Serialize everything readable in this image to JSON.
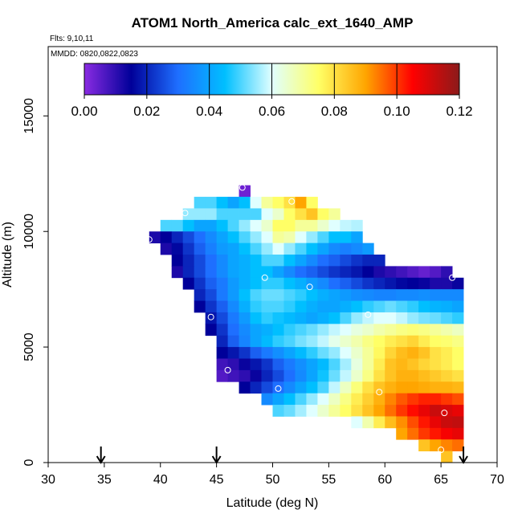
{
  "chart_data": {
    "type": "heatmap",
    "title": "ATOM1 North_America calc_ext_1640_AMP",
    "flights_note": "Flts: 9,10,11",
    "dates_note": "MMDD: 0820,0822,0823",
    "xlabel": "Latitude (deg N)",
    "ylabel": "Altitude (m)",
    "xlim": [
      30,
      70
    ],
    "ylim": [
      0,
      18000
    ],
    "x_ticks": [
      30,
      35,
      40,
      45,
      50,
      55,
      60,
      65,
      70
    ],
    "y_ticks": [
      0,
      5000,
      10000,
      15000
    ],
    "cell_size": {
      "lat": 1,
      "alt": 500
    },
    "colorbar": {
      "min": 0.0,
      "max": 0.12,
      "ticks": [
        0.0,
        0.02,
        0.04,
        0.06,
        0.08,
        0.1,
        0.12
      ],
      "tick_labels": [
        "0.00",
        "0.02",
        "0.04",
        "0.06",
        "0.08",
        "0.10",
        "0.12"
      ],
      "stops": [
        "#8a2be2",
        "#000099",
        "#1e6fff",
        "#00bfff",
        "#e0ffff",
        "#ffff66",
        "#ffa500",
        "#ff0000",
        "#8b1a1a"
      ]
    },
    "arrows_lat": [
      34.7,
      45.0,
      67.0
    ],
    "grid_rows": [
      {
        "alt": 11750,
        "lat0": 47,
        "values": [
          0.003
        ]
      },
      {
        "alt": 11250,
        "lat0": 43,
        "values": [
          0.05,
          0.05,
          0.045,
          0.04,
          0.045,
          0.06,
          0.07,
          0.075,
          0.08,
          0.09,
          0.075
        ]
      },
      {
        "alt": 10750,
        "lat0": 42,
        "values": [
          0.055,
          0.055,
          0.055,
          0.05,
          0.05,
          0.05,
          0.05,
          0.06,
          0.065,
          0.075,
          0.08,
          0.085,
          0.075,
          0.07
        ]
      },
      {
        "alt": 10250,
        "lat0": 40,
        "values": [
          0.05,
          0.05,
          0.045,
          0.04,
          0.04,
          0.045,
          0.05,
          0.055,
          0.06,
          0.065,
          0.075,
          0.075,
          0.07,
          0.07,
          0.065,
          0.06,
          0.058,
          0.057
        ]
      },
      {
        "alt": 9750,
        "lat0": 39,
        "values": [
          0.012,
          0.015,
          0.02,
          0.025,
          0.03,
          0.035,
          0.04,
          0.045,
          0.05,
          0.055,
          0.06,
          0.07,
          0.068,
          0.06,
          0.055,
          0.05,
          0.045,
          0.045,
          0.04
        ]
      },
      {
        "alt": 9250,
        "lat0": 40,
        "values": [
          0.012,
          0.016,
          0.022,
          0.028,
          0.033,
          0.038,
          0.04,
          0.045,
          0.05,
          0.055,
          0.06,
          0.055,
          0.05,
          0.045,
          0.04,
          0.035,
          0.033,
          0.035,
          0.038
        ]
      },
      {
        "alt": 8750,
        "lat0": 41,
        "values": [
          0.015,
          0.02,
          0.025,
          0.03,
          0.035,
          0.04,
          0.042,
          0.045,
          0.05,
          0.05,
          0.045,
          0.04,
          0.035,
          0.03,
          0.028,
          0.025,
          0.022,
          0.02,
          0.02
        ]
      },
      {
        "alt": 8250,
        "lat0": 41,
        "values": [
          0.012,
          0.02,
          0.025,
          0.03,
          0.035,
          0.04,
          0.042,
          0.045,
          0.045,
          0.04,
          0.035,
          0.03,
          0.028,
          0.025,
          0.022,
          0.02,
          0.018,
          0.015,
          0.012,
          0.01,
          0.008,
          0.006,
          0.004,
          0.006,
          0.01
        ]
      },
      {
        "alt": 7750,
        "lat0": 42,
        "values": [
          0.015,
          0.022,
          0.028,
          0.032,
          0.038,
          0.042,
          0.045,
          0.048,
          0.048,
          0.045,
          0.042,
          0.038,
          0.035,
          0.03,
          0.028,
          0.025,
          0.022,
          0.02,
          0.018,
          0.016,
          0.015,
          0.014,
          0.012,
          0.012,
          0.014
        ]
      },
      {
        "alt": 7250,
        "lat0": 43,
        "values": [
          0.02,
          0.025,
          0.032,
          0.038,
          0.045,
          0.05,
          0.052,
          0.052,
          0.05,
          0.048,
          0.045,
          0.042,
          0.04,
          0.038,
          0.036,
          0.035,
          0.034,
          0.034,
          0.035,
          0.035,
          0.036,
          0.035,
          0.035,
          0.035
        ]
      },
      {
        "alt": 6750,
        "lat0": 43,
        "values": [
          0.015,
          0.022,
          0.028,
          0.035,
          0.042,
          0.048,
          0.05,
          0.05,
          0.048,
          0.045,
          0.042,
          0.04,
          0.04,
          0.042,
          0.045,
          0.048,
          0.05,
          0.052,
          0.05,
          0.048,
          0.045,
          0.043,
          0.042,
          0.04
        ]
      },
      {
        "alt": 6250,
        "lat0": 44,
        "values": [
          0.018,
          0.025,
          0.032,
          0.038,
          0.045,
          0.048,
          0.046,
          0.044,
          0.042,
          0.04,
          0.042,
          0.045,
          0.05,
          0.055,
          0.058,
          0.06,
          0.06,
          0.058,
          0.055,
          0.053,
          0.052,
          0.05,
          0.048
        ]
      },
      {
        "alt": 5750,
        "lat0": 44,
        "values": [
          0.015,
          0.022,
          0.03,
          0.035,
          0.04,
          0.042,
          0.045,
          0.048,
          0.05,
          0.052,
          0.055,
          0.058,
          0.06,
          0.063,
          0.065,
          0.068,
          0.07,
          0.072,
          0.073,
          0.072,
          0.07,
          0.068,
          0.066
        ]
      },
      {
        "alt": 5250,
        "lat0": 45,
        "values": [
          0.02,
          0.028,
          0.034,
          0.04,
          0.044,
          0.048,
          0.05,
          0.053,
          0.055,
          0.058,
          0.062,
          0.065,
          0.068,
          0.072,
          0.075,
          0.078,
          0.08,
          0.082,
          0.078,
          0.075,
          0.074,
          0.072
        ]
      },
      {
        "alt": 4750,
        "lat0": 45,
        "values": [
          0.015,
          0.018,
          0.022,
          0.028,
          0.032,
          0.036,
          0.04,
          0.044,
          0.048,
          0.052,
          0.055,
          0.06,
          0.065,
          0.07,
          0.076,
          0.082,
          0.086,
          0.088,
          0.085,
          0.08,
          0.078,
          0.075
        ]
      },
      {
        "alt": 4250,
        "lat0": 45,
        "values": [
          0.008,
          0.01,
          0.014,
          0.018,
          0.022,
          0.028,
          0.032,
          0.036,
          0.04,
          0.044,
          0.05,
          0.056,
          0.063,
          0.07,
          0.078,
          0.085,
          0.087,
          0.085,
          0.082,
          0.08,
          0.078,
          0.075
        ]
      },
      {
        "alt": 3750,
        "lat0": 45,
        "values": [
          0.006,
          0.008,
          0.01,
          0.014,
          0.02,
          0.025,
          0.03,
          0.035,
          0.04,
          0.046,
          0.052,
          0.058,
          0.065,
          0.072,
          0.08,
          0.085,
          0.088,
          0.088,
          0.086,
          0.084,
          0.082,
          0.08
        ]
      },
      {
        "alt": 3250,
        "lat0": 47,
        "values": [
          0.015,
          0.02,
          0.025,
          0.03,
          0.035,
          0.04,
          0.045,
          0.05,
          0.058,
          0.066,
          0.073,
          0.08,
          0.085,
          0.088,
          0.09,
          0.09,
          0.089,
          0.088,
          0.088,
          0.087
        ]
      },
      {
        "alt": 2750,
        "lat0": 49,
        "values": [
          0.035,
          0.04,
          0.045,
          0.05,
          0.055,
          0.06,
          0.066,
          0.072,
          0.078,
          0.083,
          0.088,
          0.093,
          0.097,
          0.1,
          0.102,
          0.102,
          0.1,
          0.098
        ]
      },
      {
        "alt": 2250,
        "lat0": 50,
        "values": [
          0.05,
          0.052,
          0.056,
          0.06,
          0.065,
          0.07,
          0.075,
          0.08,
          0.085,
          0.09,
          0.095,
          0.1,
          0.104,
          0.108,
          0.112,
          0.11,
          0.108
        ]
      },
      {
        "alt": 1750,
        "lat0": 57,
        "values": [
          0.06,
          0.068,
          0.078,
          0.086,
          0.092,
          0.098,
          0.103,
          0.108,
          0.112,
          0.113
        ]
      },
      {
        "alt": 1250,
        "lat0": 61,
        "values": [
          0.09,
          0.095,
          0.1,
          0.103,
          0.106,
          0.108
        ]
      },
      {
        "alt": 750,
        "lat0": 63,
        "values": [
          0.085,
          0.09,
          0.093,
          0.095
        ]
      },
      {
        "alt": 250,
        "lat0": 65,
        "values": [
          0.085
        ]
      }
    ],
    "sample_points": [
      {
        "lat": 47.3,
        "alt": 11900
      },
      {
        "lat": 42.2,
        "alt": 10800
      },
      {
        "lat": 51.7,
        "alt": 11300
      },
      {
        "lat": 39.0,
        "alt": 9650
      },
      {
        "lat": 49.3,
        "alt": 8000
      },
      {
        "lat": 53.3,
        "alt": 7600
      },
      {
        "lat": 66.0,
        "alt": 8000
      },
      {
        "lat": 44.5,
        "alt": 6300
      },
      {
        "lat": 58.5,
        "alt": 6400
      },
      {
        "lat": 46.0,
        "alt": 4000
      },
      {
        "lat": 50.5,
        "alt": 3200
      },
      {
        "lat": 59.5,
        "alt": 3050
      },
      {
        "lat": 65.3,
        "alt": 2150
      },
      {
        "lat": 65.0,
        "alt": 550
      }
    ]
  }
}
